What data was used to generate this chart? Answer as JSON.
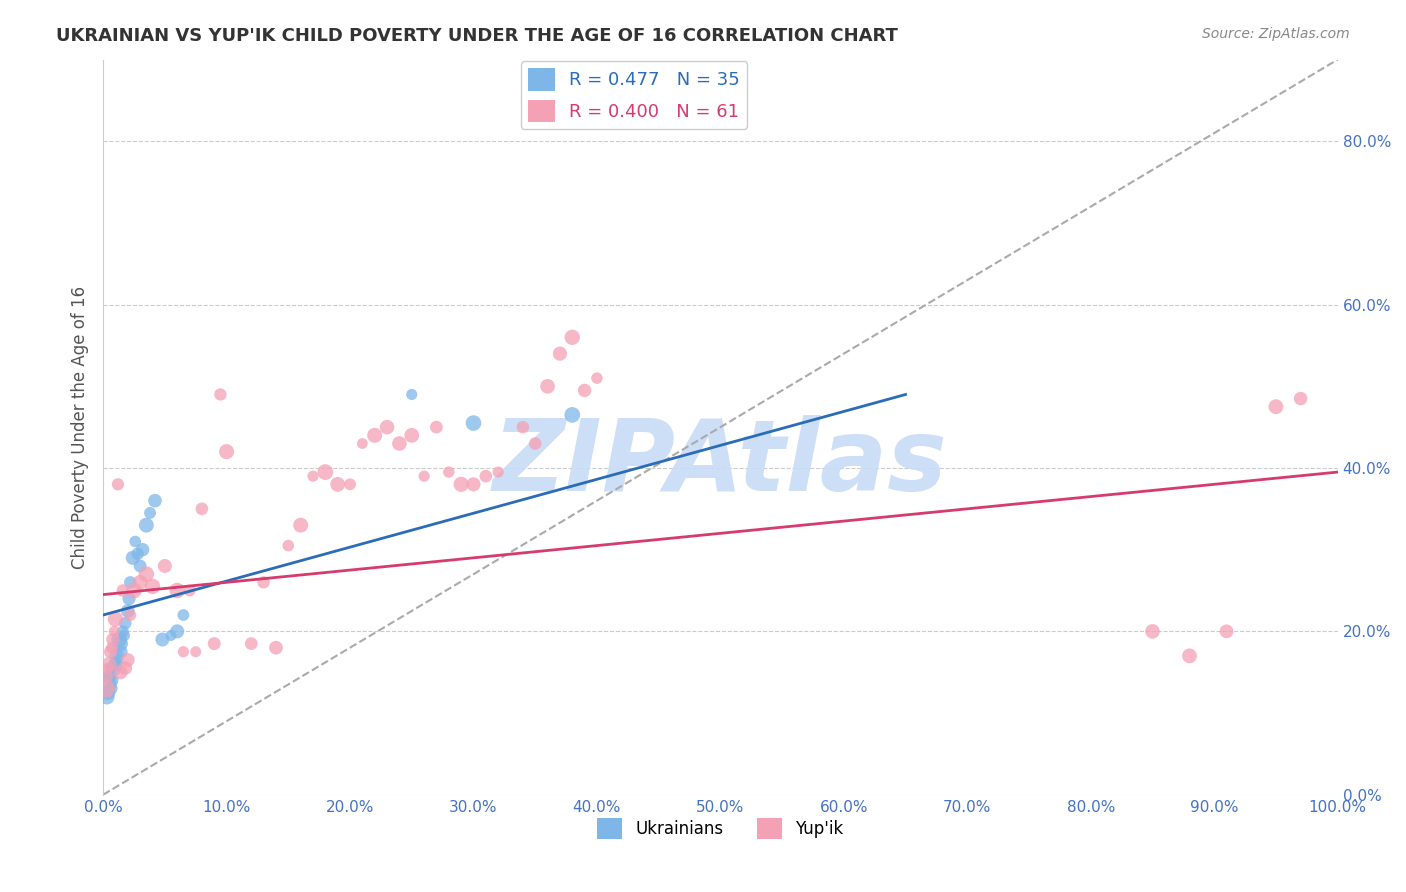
{
  "title": "UKRAINIAN VS YUP'IK CHILD POVERTY UNDER THE AGE OF 16 CORRELATION CHART",
  "source": "Source: ZipAtlas.com",
  "ylabel": "Child Poverty Under the Age of 16",
  "xlabel": "",
  "r_ukrainian": 0.477,
  "n_ukrainian": 35,
  "r_yupik": 0.4,
  "n_yupik": 61,
  "ukrainian_color": "#7EB6E8",
  "yupik_color": "#F4A0B5",
  "line_ukrainian_color": "#2B6CB8",
  "line_yupik_color": "#D63B6E",
  "watermark": "ZIPAtlas",
  "watermark_color": "#C8DCF5",
  "ukrainian_x": [
    0.002,
    0.003,
    0.004,
    0.005,
    0.006,
    0.007,
    0.008,
    0.009,
    0.01,
    0.011,
    0.012,
    0.013,
    0.014,
    0.015,
    0.016,
    0.017,
    0.018,
    0.02,
    0.021,
    0.022,
    0.024,
    0.026,
    0.028,
    0.03,
    0.032,
    0.035,
    0.038,
    0.042,
    0.048,
    0.055,
    0.06,
    0.065,
    0.25,
    0.3,
    0.38
  ],
  "ukrainian_y": [
    0.135,
    0.12,
    0.125,
    0.145,
    0.155,
    0.13,
    0.14,
    0.155,
    0.16,
    0.17,
    0.165,
    0.19,
    0.185,
    0.175,
    0.2,
    0.195,
    0.21,
    0.225,
    0.24,
    0.26,
    0.29,
    0.31,
    0.295,
    0.28,
    0.3,
    0.33,
    0.345,
    0.36,
    0.19,
    0.195,
    0.2,
    0.22,
    0.49,
    0.455,
    0.465
  ],
  "yupik_x": [
    0.002,
    0.003,
    0.004,
    0.005,
    0.006,
    0.007,
    0.008,
    0.009,
    0.01,
    0.012,
    0.014,
    0.016,
    0.018,
    0.02,
    0.022,
    0.025,
    0.03,
    0.035,
    0.04,
    0.05,
    0.06,
    0.065,
    0.07,
    0.075,
    0.08,
    0.09,
    0.095,
    0.1,
    0.12,
    0.13,
    0.14,
    0.15,
    0.16,
    0.17,
    0.18,
    0.19,
    0.2,
    0.21,
    0.22,
    0.23,
    0.24,
    0.25,
    0.26,
    0.27,
    0.28,
    0.29,
    0.3,
    0.31,
    0.32,
    0.34,
    0.35,
    0.36,
    0.37,
    0.38,
    0.39,
    0.4,
    0.85,
    0.88,
    0.91,
    0.95,
    0.97
  ],
  "yupik_y": [
    0.13,
    0.145,
    0.155,
    0.16,
    0.175,
    0.18,
    0.19,
    0.2,
    0.215,
    0.38,
    0.15,
    0.25,
    0.155,
    0.165,
    0.22,
    0.25,
    0.26,
    0.27,
    0.255,
    0.28,
    0.25,
    0.175,
    0.25,
    0.175,
    0.35,
    0.185,
    0.49,
    0.42,
    0.185,
    0.26,
    0.18,
    0.305,
    0.33,
    0.39,
    0.395,
    0.38,
    0.38,
    0.43,
    0.44,
    0.45,
    0.43,
    0.44,
    0.39,
    0.45,
    0.395,
    0.38,
    0.38,
    0.39,
    0.395,
    0.45,
    0.43,
    0.5,
    0.54,
    0.56,
    0.495,
    0.51,
    0.2,
    0.17,
    0.2,
    0.475,
    0.485
  ],
  "xlim": [
    0.0,
    1.0
  ],
  "ylim": [
    0.0,
    0.9
  ],
  "yticks": [
    0.0,
    0.2,
    0.4,
    0.6,
    0.8
  ],
  "xticks": [
    0.0,
    0.1,
    0.2,
    0.3,
    0.4,
    0.5,
    0.6,
    0.7,
    0.8,
    0.9,
    1.0
  ],
  "grid_color": "#CCCCCC",
  "background_color": "#FFFFFF",
  "title_color": "#333333",
  "axis_label_color": "#555555",
  "tick_color": "#4472C4"
}
